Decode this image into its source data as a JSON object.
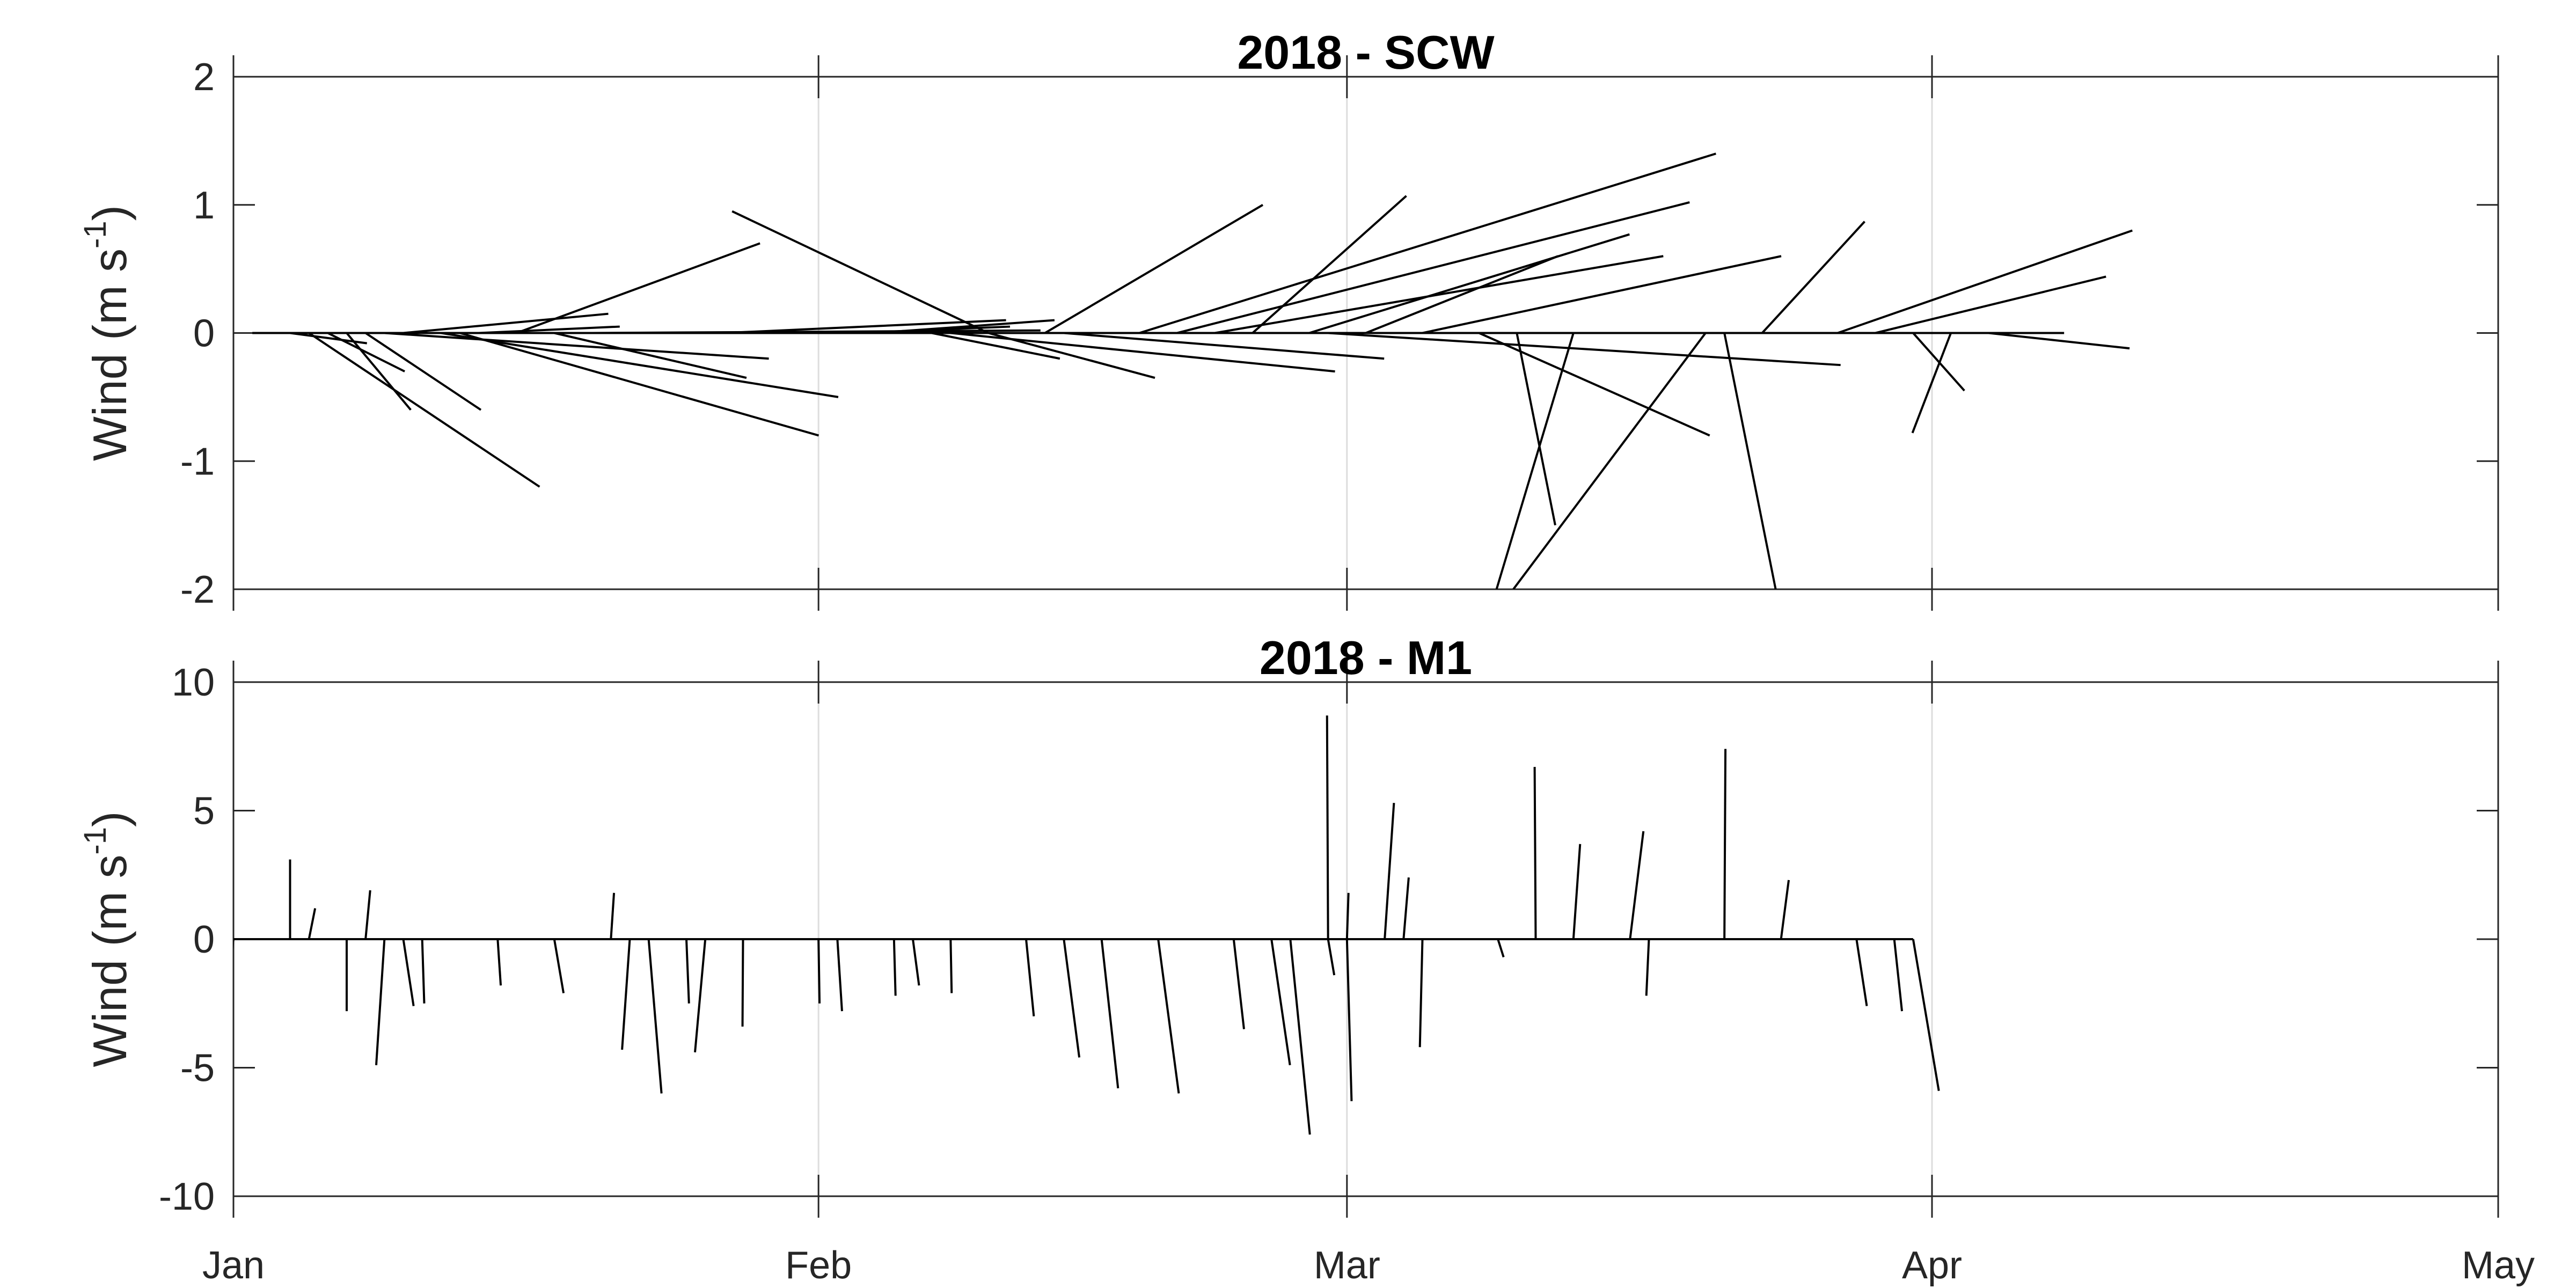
{
  "chart_data": [
    {
      "type": "stick-plot",
      "title": "2018 - SCW",
      "ylabel": {
        "main": "Wind (m s",
        "superscript": "-1",
        "close": ")"
      },
      "ylim": [
        -2,
        2
      ],
      "yticks": [
        2,
        1,
        0,
        -1,
        -2
      ],
      "xlim": [
        "2018-01-01",
        "2018-05-01"
      ],
      "xticks": [
        {
          "label": "Jan",
          "date": "2018-01-01"
        },
        {
          "label": "Feb",
          "date": "2018-02-01"
        },
        {
          "label": "Mar",
          "date": "2018-03-01"
        },
        {
          "label": "Apr",
          "date": "2018-04-01"
        },
        {
          "label": "May",
          "date": "2018-05-01"
        }
      ],
      "vertical_gridlines": true,
      "baseline": {
        "from": "2018-01-02",
        "to": "2018-04-08"
      },
      "sticks": [
        {
          "date": "2018-01-01",
          "u": -1.0,
          "v": -0.4
        },
        {
          "date": "2018-01-04",
          "u": 0.6,
          "v": -0.08
        },
        {
          "date": "2018-01-05",
          "u": 1.8,
          "v": -1.2
        },
        {
          "date": "2018-01-06",
          "u": 0.6,
          "v": -0.3
        },
        {
          "date": "2018-01-07",
          "u": 0.5,
          "v": -0.6
        },
        {
          "date": "2018-01-08",
          "u": 0.9,
          "v": -0.6
        },
        {
          "date": "2018-01-09",
          "u": 3.0,
          "v": -0.2
        },
        {
          "date": "2018-01-10",
          "u": 1.6,
          "v": 0.15
        },
        {
          "date": "2018-01-12",
          "u": 3.1,
          "v": -0.5
        },
        {
          "date": "2018-01-13",
          "u": 2.8,
          "v": -0.8
        },
        {
          "date": "2018-01-14",
          "u": 1.1,
          "v": 0.05
        },
        {
          "date": "2018-01-16",
          "u": 1.9,
          "v": 0.7
        },
        {
          "date": "2018-01-18",
          "u": 1.5,
          "v": -0.35
        },
        {
          "date": "2018-01-20",
          "u": 3.5,
          "v": 0.02
        },
        {
          "date": "2018-01-27",
          "u": 2.2,
          "v": 0.1
        },
        {
          "date": "2018-02-03",
          "u": 1.2,
          "v": 0.05
        },
        {
          "date": "2018-02-04",
          "u": 1.4,
          "v": 0.1
        },
        {
          "date": "2018-02-07",
          "u": 1.0,
          "v": -0.2
        },
        {
          "date": "2018-02-08",
          "u": 3.0,
          "v": -0.3
        },
        {
          "date": "2018-02-10",
          "u": 1.3,
          "v": -0.35
        },
        {
          "date": "2018-02-10",
          "u": -2.0,
          "v": 0.95
        },
        {
          "date": "2018-02-13",
          "u": 1.7,
          "v": 1.0
        },
        {
          "date": "2018-02-14",
          "u": 2.5,
          "v": -0.2
        },
        {
          "date": "2018-02-18",
          "u": 4.5,
          "v": 1.4
        },
        {
          "date": "2018-02-20",
          "u": 4.0,
          "v": 1.02
        },
        {
          "date": "2018-02-22",
          "u": 3.5,
          "v": 0.6
        },
        {
          "date": "2018-02-24",
          "u": 1.2,
          "v": 1.07
        },
        {
          "date": "2018-02-27",
          "u": 2.5,
          "v": 0.77
        },
        {
          "date": "2018-02-28",
          "u": 4.0,
          "v": -0.25
        },
        {
          "date": "2018-03-02",
          "u": 1.5,
          "v": 0.6
        },
        {
          "date": "2018-03-05",
          "u": 2.8,
          "v": 0.6
        },
        {
          "date": "2018-03-08",
          "u": 1.8,
          "v": -0.8
        },
        {
          "date": "2018-03-10",
          "u": 0.3,
          "v": -1.5
        },
        {
          "date": "2018-03-13",
          "u": -0.6,
          "v": -2.0
        },
        {
          "date": "2018-03-20",
          "u": -1.5,
          "v": -2.0
        },
        {
          "date": "2018-03-21",
          "u": 0.4,
          "v": -2.0
        },
        {
          "date": "2018-03-23",
          "u": 0.8,
          "v": 0.87
        },
        {
          "date": "2018-03-27",
          "u": 2.3,
          "v": 0.8
        },
        {
          "date": "2018-03-29",
          "u": 1.8,
          "v": 0.44
        },
        {
          "date": "2018-03-31",
          "u": 0.4,
          "v": -0.45
        },
        {
          "date": "2018-04-02",
          "u": -0.3,
          "v": -0.78
        },
        {
          "date": "2018-04-04",
          "u": 1.1,
          "v": -0.12
        }
      ]
    },
    {
      "type": "stick-plot",
      "title": "2018 - M1",
      "ylabel": {
        "main": "Wind (m s",
        "superscript": "-1",
        "close": ")"
      },
      "ylim": [
        -10,
        10
      ],
      "yticks": [
        10,
        5,
        0,
        -5,
        -10
      ],
      "xlim": [
        "2018-01-01",
        "2018-05-01"
      ],
      "xticks": [
        {
          "label": "Jan",
          "date": "2018-01-01"
        },
        {
          "label": "Feb",
          "date": "2018-02-01"
        },
        {
          "label": "Mar",
          "date": "2018-03-01"
        },
        {
          "label": "Apr",
          "date": "2018-04-01"
        },
        {
          "label": "May",
          "date": "2018-05-01"
        }
      ],
      "vertical_gridlines": true,
      "baseline": {
        "from": "2018-01-01",
        "to": "2018-03-31"
      },
      "sticks": [
        {
          "date": "2018-01-01",
          "u": -0.3,
          "v": -0.6
        },
        {
          "date": "2018-01-04",
          "u": 0.0,
          "v": 3.1
        },
        {
          "date": "2018-01-05",
          "u": 1.2,
          "v": 1.2
        },
        {
          "date": "2018-01-07",
          "u": 0.0,
          "v": -2.8
        },
        {
          "date": "2018-01-08",
          "u": 0.9,
          "v": 1.9
        },
        {
          "date": "2018-01-09",
          "u": -1.6,
          "v": -4.9
        },
        {
          "date": "2018-01-10",
          "u": 2.0,
          "v": -2.6
        },
        {
          "date": "2018-01-11",
          "u": 0.4,
          "v": -2.5
        },
        {
          "date": "2018-01-15",
          "u": 0.6,
          "v": -1.8
        },
        {
          "date": "2018-01-18",
          "u": 1.8,
          "v": -2.1
        },
        {
          "date": "2018-01-21",
          "u": 0.6,
          "v": 1.8
        },
        {
          "date": "2018-01-22",
          "u": -1.5,
          "v": -4.3
        },
        {
          "date": "2018-01-23",
          "u": 2.5,
          "v": -6.0
        },
        {
          "date": "2018-01-25",
          "u": 0.5,
          "v": -2.5
        },
        {
          "date": "2018-01-26",
          "u": -2.0,
          "v": -4.4
        },
        {
          "date": "2018-01-28",
          "u": -0.1,
          "v": -3.4
        },
        {
          "date": "2018-02-01",
          "u": 0.2,
          "v": -2.5
        },
        {
          "date": "2018-02-02",
          "u": 0.9,
          "v": -2.8
        },
        {
          "date": "2018-02-05",
          "u": 0.3,
          "v": -2.2
        },
        {
          "date": "2018-02-06",
          "u": 1.2,
          "v": -1.8
        },
        {
          "date": "2018-02-08",
          "u": 0.2,
          "v": -2.1
        },
        {
          "date": "2018-02-12",
          "u": 1.5,
          "v": -3.0
        },
        {
          "date": "2018-02-14",
          "u": 3.0,
          "v": -4.6
        },
        {
          "date": "2018-02-16",
          "u": 3.2,
          "v": -5.8
        },
        {
          "date": "2018-02-19",
          "u": 4.0,
          "v": -6.0
        },
        {
          "date": "2018-02-23",
          "u": 2.0,
          "v": -3.5
        },
        {
          "date": "2018-02-25",
          "u": 3.6,
          "v": -4.9
        },
        {
          "date": "2018-02-26",
          "u": 3.8,
          "v": -7.6
        },
        {
          "date": "2018-02-28",
          "u": 1.2,
          "v": -1.4
        },
        {
          "date": "2018-02-28",
          "u": -0.2,
          "v": 8.7
        },
        {
          "date": "2018-03-01",
          "u": 0.9,
          "v": -6.3
        },
        {
          "date": "2018-03-01",
          "u": 0.3,
          "v": 1.8
        },
        {
          "date": "2018-03-03",
          "u": 1.8,
          "v": 5.3
        },
        {
          "date": "2018-03-04",
          "u": 1.0,
          "v": 2.4
        },
        {
          "date": "2018-03-05",
          "u": -0.5,
          "v": -4.2
        },
        {
          "date": "2018-03-09",
          "u": 1.1,
          "v": -0.7
        },
        {
          "date": "2018-03-11",
          "u": -0.2,
          "v": 6.7
        },
        {
          "date": "2018-03-13",
          "u": 1.3,
          "v": 3.7
        },
        {
          "date": "2018-03-16",
          "u": 2.6,
          "v": 4.2
        },
        {
          "date": "2018-03-17",
          "u": -0.5,
          "v": -2.2
        },
        {
          "date": "2018-03-21",
          "u": 0.2,
          "v": 7.4
        },
        {
          "date": "2018-03-24",
          "u": 1.5,
          "v": 2.3
        },
        {
          "date": "2018-03-28",
          "u": 2.0,
          "v": -2.6
        },
        {
          "date": "2018-03-30",
          "u": 1.5,
          "v": -2.8
        },
        {
          "date": "2018-03-31",
          "u": 5.0,
          "v": -5.9
        }
      ]
    }
  ]
}
